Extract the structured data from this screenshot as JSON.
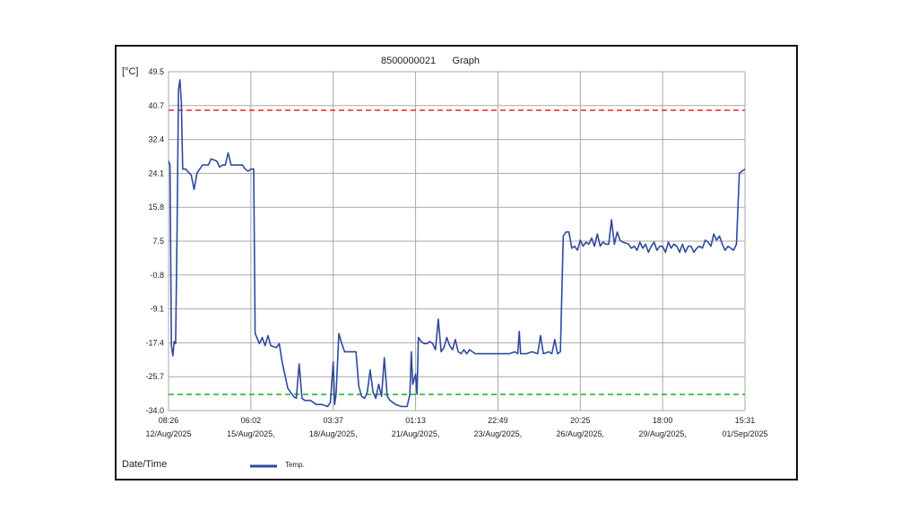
{
  "chart_data": {
    "type": "line",
    "title": "8500000021      Graph",
    "ylabel": "[°C]",
    "xlabel": "Date/Time",
    "ylim": [
      -34.0,
      49.5
    ],
    "y_ticks": [
      "49.5",
      "40.7",
      "32.4",
      "24.1",
      "15.8",
      "7.5",
      "-0.8",
      "-9.1",
      "-17.4",
      "-25.7",
      "-34.0"
    ],
    "x_ticks": [
      {
        "time": "08:26",
        "date": "12/Aug/2025"
      },
      {
        "time": "06:02",
        "date": "15/Aug/2025,"
      },
      {
        "time": "03:37",
        "date": "18/Aug/2025,"
      },
      {
        "time": "01:13",
        "date": "21/Aug/2025,"
      },
      {
        "time": "22:49",
        "date": "23/Aug/2025,"
      },
      {
        "time": "20:25",
        "date": "26/Aug/2025,"
      },
      {
        "time": "18:00",
        "date": "29/Aug/2025,"
      },
      {
        "time": "15:31",
        "date": "01/Sep/2025"
      }
    ],
    "x_range_days": [
      0,
      20.3
    ],
    "limits": [
      {
        "value": 40.0,
        "color": "#e8262b"
      },
      {
        "value": -30.0,
        "color": "#34b034"
      }
    ],
    "legend": {
      "position": "bottom-left",
      "entries": [
        "Temp."
      ]
    },
    "grid": true,
    "series": [
      {
        "name": "Temp.",
        "color": "#2e4a9e",
        "points": [
          [
            0.0,
            27.5
          ],
          [
            0.05,
            26.5
          ],
          [
            0.1,
            -18.0
          ],
          [
            0.15,
            -20.5
          ],
          [
            0.2,
            -17.0
          ],
          [
            0.25,
            -17.5
          ],
          [
            0.3,
            10.0
          ],
          [
            0.35,
            45.0
          ],
          [
            0.4,
            47.5
          ],
          [
            0.45,
            42.0
          ],
          [
            0.5,
            25.5
          ],
          [
            0.6,
            25.5
          ],
          [
            0.8,
            24.0
          ],
          [
            0.9,
            20.5
          ],
          [
            1.0,
            24.5
          ],
          [
            1.2,
            26.5
          ],
          [
            1.4,
            26.5
          ],
          [
            1.5,
            28.0
          ],
          [
            1.7,
            27.5
          ],
          [
            1.8,
            26.0
          ],
          [
            1.9,
            26.5
          ],
          [
            2.0,
            26.5
          ],
          [
            2.1,
            29.5
          ],
          [
            2.2,
            26.5
          ],
          [
            2.4,
            26.5
          ],
          [
            2.6,
            26.5
          ],
          [
            2.7,
            25.5
          ],
          [
            2.8,
            25.0
          ],
          [
            2.9,
            25.5
          ],
          [
            3.0,
            25.5
          ],
          [
            3.05,
            -15.0
          ],
          [
            3.2,
            -17.5
          ],
          [
            3.3,
            -16.0
          ],
          [
            3.4,
            -18.0
          ],
          [
            3.5,
            -15.5
          ],
          [
            3.6,
            -18.0
          ],
          [
            3.8,
            -18.5
          ],
          [
            3.9,
            -17.5
          ],
          [
            4.0,
            -22.0
          ],
          [
            4.2,
            -28.5
          ],
          [
            4.4,
            -30.5
          ],
          [
            4.5,
            -31.0
          ],
          [
            4.6,
            -22.5
          ],
          [
            4.7,
            -31.0
          ],
          [
            4.8,
            -31.5
          ],
          [
            5.0,
            -31.5
          ],
          [
            5.2,
            -32.5
          ],
          [
            5.4,
            -32.5
          ],
          [
            5.6,
            -33.0
          ],
          [
            5.7,
            -32.0
          ],
          [
            5.8,
            -22.0
          ],
          [
            5.85,
            -32.5
          ],
          [
            5.9,
            -30.0
          ],
          [
            6.0,
            -15.0
          ],
          [
            6.1,
            -17.5
          ],
          [
            6.2,
            -19.5
          ],
          [
            6.4,
            -19.5
          ],
          [
            6.6,
            -19.5
          ],
          [
            6.7,
            -28.0
          ],
          [
            6.8,
            -30.5
          ],
          [
            6.9,
            -31.0
          ],
          [
            7.0,
            -29.5
          ],
          [
            7.1,
            -24.0
          ],
          [
            7.2,
            -29.5
          ],
          [
            7.3,
            -31.0
          ],
          [
            7.4,
            -27.5
          ],
          [
            7.5,
            -30.5
          ],
          [
            7.6,
            -21.0
          ],
          [
            7.7,
            -30.5
          ],
          [
            7.8,
            -31.5
          ],
          [
            8.0,
            -32.5
          ],
          [
            8.2,
            -33.0
          ],
          [
            8.4,
            -33.0
          ],
          [
            8.5,
            -30.0
          ],
          [
            8.55,
            -19.5
          ],
          [
            8.6,
            -27.5
          ],
          [
            8.7,
            -25.0
          ],
          [
            8.75,
            -30.0
          ],
          [
            8.8,
            -16.0
          ],
          [
            8.9,
            -17.0
          ],
          [
            9.0,
            -17.5
          ],
          [
            9.1,
            -17.5
          ],
          [
            9.2,
            -17.0
          ],
          [
            9.3,
            -17.5
          ],
          [
            9.4,
            -19.0
          ],
          [
            9.5,
            -11.5
          ],
          [
            9.6,
            -19.5
          ],
          [
            9.7,
            -18.5
          ],
          [
            9.8,
            -16.0
          ],
          [
            9.9,
            -18.0
          ],
          [
            10.0,
            -19.0
          ],
          [
            10.1,
            -16.5
          ],
          [
            10.2,
            -19.5
          ],
          [
            10.3,
            -20.0
          ],
          [
            10.4,
            -19.0
          ],
          [
            10.5,
            -20.0
          ],
          [
            10.6,
            -19.0
          ],
          [
            10.8,
            -20.0
          ],
          [
            11.0,
            -20.0
          ],
          [
            11.5,
            -20.0
          ],
          [
            12.0,
            -20.0
          ],
          [
            12.2,
            -19.5
          ],
          [
            12.3,
            -20.0
          ],
          [
            12.35,
            -14.5
          ],
          [
            12.4,
            -20.0
          ],
          [
            12.6,
            -20.0
          ],
          [
            12.8,
            -19.5
          ],
          [
            13.0,
            -20.0
          ],
          [
            13.1,
            -15.5
          ],
          [
            13.2,
            -20.0
          ],
          [
            13.4,
            -19.5
          ],
          [
            13.5,
            -20.0
          ],
          [
            13.6,
            -16.5
          ],
          [
            13.7,
            -20.0
          ],
          [
            13.8,
            -19.5
          ],
          [
            13.9,
            9.0
          ],
          [
            14.0,
            10.0
          ],
          [
            14.1,
            10.0
          ],
          [
            14.2,
            6.0
          ],
          [
            14.3,
            6.5
          ],
          [
            14.4,
            5.5
          ],
          [
            14.5,
            8.0
          ],
          [
            14.6,
            6.5
          ],
          [
            14.7,
            7.5
          ],
          [
            14.8,
            7.0
          ],
          [
            14.9,
            8.5
          ],
          [
            15.0,
            6.5
          ],
          [
            15.1,
            9.5
          ],
          [
            15.2,
            6.5
          ],
          [
            15.3,
            7.5
          ],
          [
            15.4,
            7.0
          ],
          [
            15.5,
            7.0
          ],
          [
            15.6,
            13.0
          ],
          [
            15.7,
            7.0
          ],
          [
            15.8,
            10.0
          ],
          [
            15.9,
            8.0
          ],
          [
            16.0,
            7.5
          ],
          [
            16.2,
            7.0
          ],
          [
            16.3,
            6.0
          ],
          [
            16.4,
            6.5
          ],
          [
            16.5,
            5.5
          ],
          [
            16.6,
            7.5
          ],
          [
            16.7,
            6.0
          ],
          [
            16.8,
            7.0
          ],
          [
            16.9,
            5.0
          ],
          [
            17.0,
            6.5
          ],
          [
            17.1,
            7.5
          ],
          [
            17.2,
            5.5
          ],
          [
            17.3,
            6.5
          ],
          [
            17.4,
            6.5
          ],
          [
            17.5,
            5.0
          ],
          [
            17.6,
            7.5
          ],
          [
            17.7,
            6.0
          ],
          [
            17.8,
            7.0
          ],
          [
            17.9,
            6.5
          ],
          [
            18.0,
            5.0
          ],
          [
            18.1,
            7.0
          ],
          [
            18.2,
            5.0
          ],
          [
            18.3,
            6.5
          ],
          [
            18.4,
            6.5
          ],
          [
            18.5,
            5.0
          ],
          [
            18.6,
            6.0
          ],
          [
            18.7,
            6.5
          ],
          [
            18.8,
            6.0
          ],
          [
            18.9,
            8.0
          ],
          [
            19.0,
            7.5
          ],
          [
            19.1,
            6.5
          ],
          [
            19.2,
            9.5
          ],
          [
            19.3,
            8.0
          ],
          [
            19.4,
            9.0
          ],
          [
            19.5,
            7.0
          ],
          [
            19.6,
            5.5
          ],
          [
            19.7,
            6.5
          ],
          [
            19.8,
            6.0
          ],
          [
            19.9,
            5.5
          ],
          [
            20.0,
            7.0
          ],
          [
            20.1,
            24.5
          ],
          [
            20.3,
            25.5
          ]
        ]
      }
    ]
  }
}
